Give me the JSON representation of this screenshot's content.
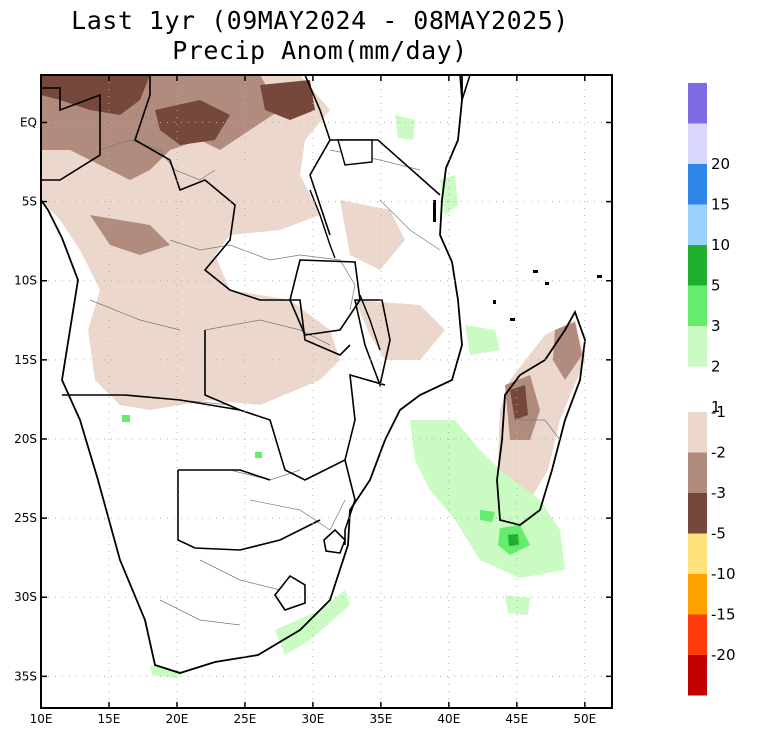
{
  "title": {
    "line1": "Last 1yr (09MAY2024 - 08MAY2025)",
    "line2": "Precip Anom(mm/day)"
  },
  "map": {
    "lon_ticks": [
      "10E",
      "15E",
      "20E",
      "25E",
      "30E",
      "35E",
      "40E",
      "45E",
      "50E"
    ],
    "lat_ticks": [
      "EQ",
      "5S",
      "10S",
      "15S",
      "20S",
      "25S",
      "30S",
      "35S"
    ],
    "lon_range": [
      10,
      52
    ],
    "lat_range": [
      -37,
      3
    ],
    "gridlines": "dotted"
  },
  "legend": {
    "positive": [
      {
        "label": "",
        "color": "#7f6ae6"
      },
      {
        "label": "20",
        "color": "#d9d7fb"
      },
      {
        "label": "15",
        "color": "#2e85e8"
      },
      {
        "label": "10",
        "color": "#9ad2fb"
      },
      {
        "label": "5",
        "color": "#1fae2d"
      },
      {
        "label": "3",
        "color": "#64ec6c"
      },
      {
        "label": "2",
        "color": "#c9fbc3"
      },
      {
        "label": "1",
        "color": ""
      }
    ],
    "negative": [
      {
        "label": "-1",
        "color": "#ebd7cc"
      },
      {
        "label": "-2",
        "color": "#b08b7e"
      },
      {
        "label": "-3",
        "color": "#76483c"
      },
      {
        "label": "-5",
        "color": "#ffe27a"
      },
      {
        "label": "-10",
        "color": "#ffa200"
      },
      {
        "label": "-15",
        "color": "#ff3a0d"
      },
      {
        "label": "-20",
        "color": "#c30000"
      }
    ]
  },
  "colors": {
    "dry_light": "#ebd7cc",
    "dry_mid": "#b08b7e",
    "dry_dark": "#76483c",
    "wet_light": "#c9fbc3",
    "wet_mid": "#64ec6c",
    "wet_dark": "#1fae2d"
  }
}
